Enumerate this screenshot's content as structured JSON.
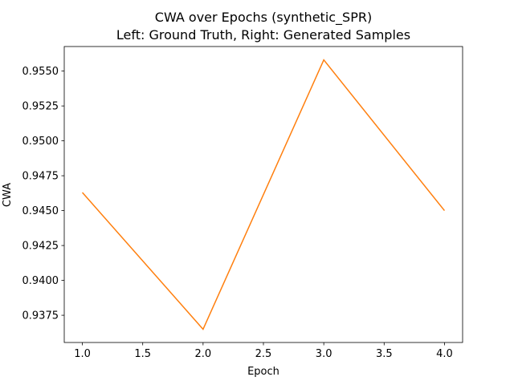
{
  "chart_data": {
    "type": "line",
    "title": "CWA over Epochs (synthetic_SPR)",
    "subtitle": "Left: Ground Truth, Right: Generated Samples",
    "xlabel": "Epoch",
    "ylabel": "CWA",
    "x": [
      1.0,
      2.0,
      3.0,
      4.0
    ],
    "series": [
      {
        "values": [
          0.9463,
          0.9365,
          0.9558,
          0.945
        ],
        "color": "#ff7f0e"
      }
    ],
    "xlim": [
      0.85,
      4.15
    ],
    "ylim": [
      0.93555,
      0.95676
    ],
    "xticks": [
      "1.0",
      "1.5",
      "2.0",
      "2.5",
      "3.0",
      "3.5",
      "4.0"
    ],
    "yticks": [
      "0.9375",
      "0.9400",
      "0.9425",
      "0.9450",
      "0.9475",
      "0.9500",
      "0.9525",
      "0.9550"
    ],
    "grid": false,
    "legend": "none"
  }
}
